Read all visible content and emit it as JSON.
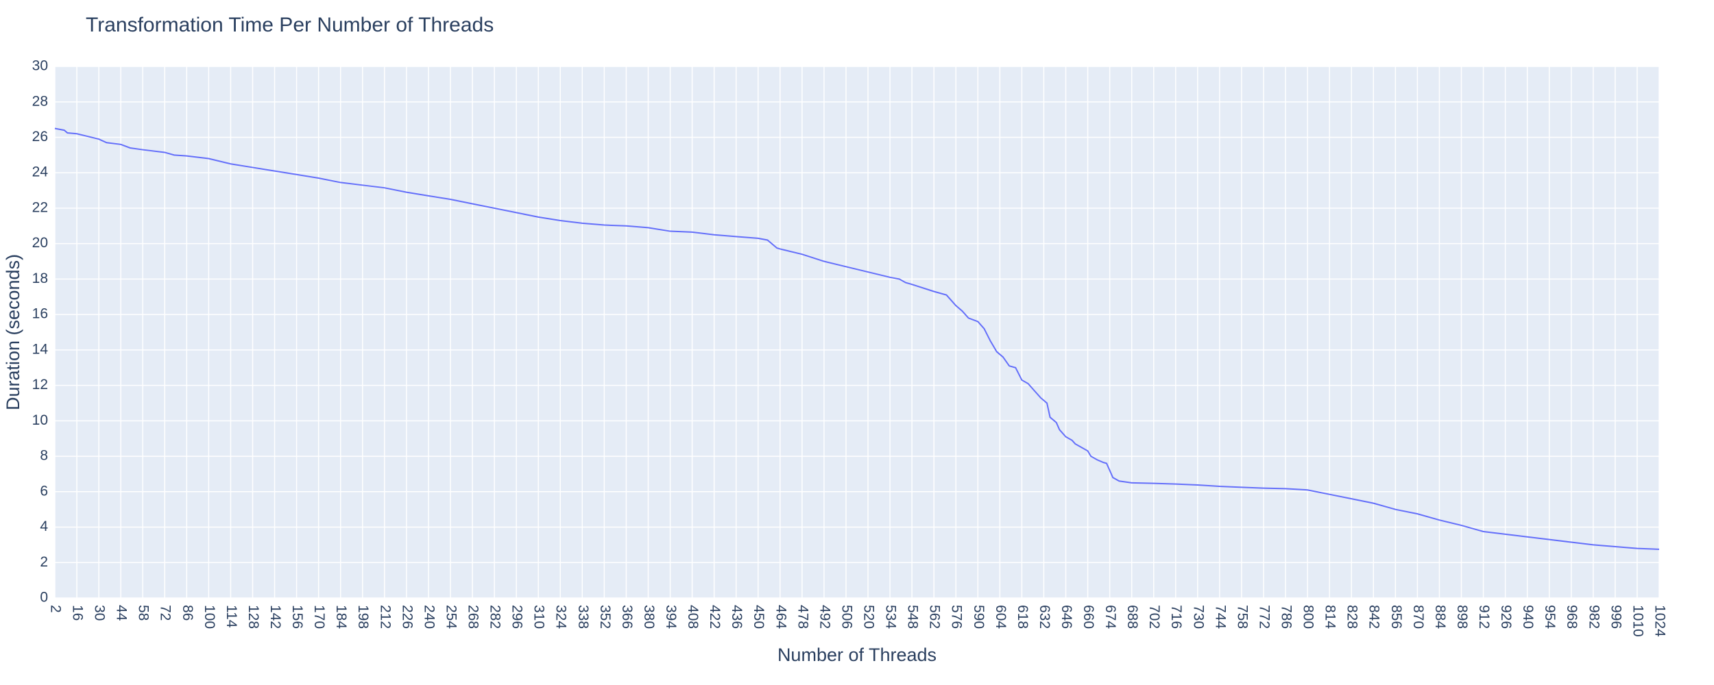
{
  "chart_data": {
    "type": "line",
    "title": "Transformation Time Per Number of Threads",
    "x_label": "Number of Threads",
    "y_label": "Duration (seconds)",
    "color": "#636efa",
    "grid": true,
    "x": [
      2,
      8,
      10,
      16,
      30,
      35,
      44,
      50,
      58,
      72,
      78,
      86,
      100,
      114,
      128,
      142,
      156,
      170,
      184,
      198,
      212,
      226,
      240,
      254,
      268,
      282,
      296,
      310,
      324,
      338,
      352,
      366,
      380,
      394,
      408,
      422,
      436,
      450,
      456,
      462,
      464,
      478,
      492,
      506,
      520,
      534,
      540,
      544,
      548,
      562,
      570,
      576,
      580,
      584,
      590,
      594,
      598,
      602,
      606,
      610,
      614,
      618,
      622,
      626,
      630,
      634,
      636,
      640,
      642,
      646,
      650,
      652,
      656,
      660,
      662,
      666,
      670,
      672,
      674,
      676,
      680,
      688,
      702,
      716,
      730,
      744,
      758,
      772,
      786,
      800,
      814,
      828,
      842,
      856,
      870,
      884,
      898,
      912,
      926,
      940,
      954,
      968,
      982,
      996,
      1010,
      1024
    ],
    "values": [
      26.5,
      26.4,
      26.25,
      26.2,
      25.9,
      25.7,
      25.6,
      25.4,
      25.3,
      25.15,
      25.0,
      24.95,
      24.8,
      24.5,
      24.3,
      24.1,
      23.9,
      23.7,
      23.45,
      23.3,
      23.15,
      22.9,
      22.7,
      22.5,
      22.25,
      22.0,
      21.75,
      21.5,
      21.3,
      21.15,
      21.05,
      21.0,
      20.9,
      20.7,
      20.65,
      20.5,
      20.4,
      20.3,
      20.2,
      19.75,
      19.7,
      19.4,
      19.0,
      18.7,
      18.4,
      18.1,
      18.0,
      17.8,
      17.7,
      17.3,
      17.1,
      16.5,
      16.2,
      15.8,
      15.6,
      15.2,
      14.5,
      13.9,
      13.6,
      13.1,
      13.0,
      12.3,
      12.1,
      11.7,
      11.3,
      11.0,
      10.2,
      9.9,
      9.5,
      9.1,
      8.9,
      8.7,
      8.5,
      8.3,
      8.0,
      7.8,
      7.65,
      7.6,
      7.2,
      6.8,
      6.6,
      6.5,
      6.47,
      6.43,
      6.38,
      6.3,
      6.25,
      6.2,
      6.17,
      6.1,
      5.85,
      5.6,
      5.35,
      5.0,
      4.75,
      4.4,
      4.1,
      3.75,
      3.6,
      3.45,
      3.3,
      3.15,
      3.0,
      2.9,
      2.8,
      2.75
    ],
    "xlim": [
      2,
      1024
    ],
    "xticks": [
      2,
      16,
      30,
      44,
      58,
      72,
      86,
      100,
      114,
      128,
      142,
      156,
      170,
      184,
      198,
      212,
      226,
      240,
      254,
      268,
      282,
      296,
      310,
      324,
      338,
      352,
      366,
      380,
      394,
      408,
      422,
      436,
      450,
      464,
      478,
      492,
      506,
      520,
      534,
      548,
      562,
      576,
      590,
      604,
      618,
      632,
      646,
      660,
      674,
      688,
      702,
      716,
      730,
      744,
      758,
      772,
      786,
      800,
      814,
      828,
      842,
      856,
      870,
      884,
      898,
      912,
      926,
      940,
      954,
      968,
      982,
      996,
      1010,
      1024
    ],
    "ylim": [
      0,
      30
    ],
    "yticks": [
      0,
      2,
      4,
      6,
      8,
      10,
      12,
      14,
      16,
      18,
      20,
      22,
      24,
      26,
      28,
      30
    ]
  }
}
